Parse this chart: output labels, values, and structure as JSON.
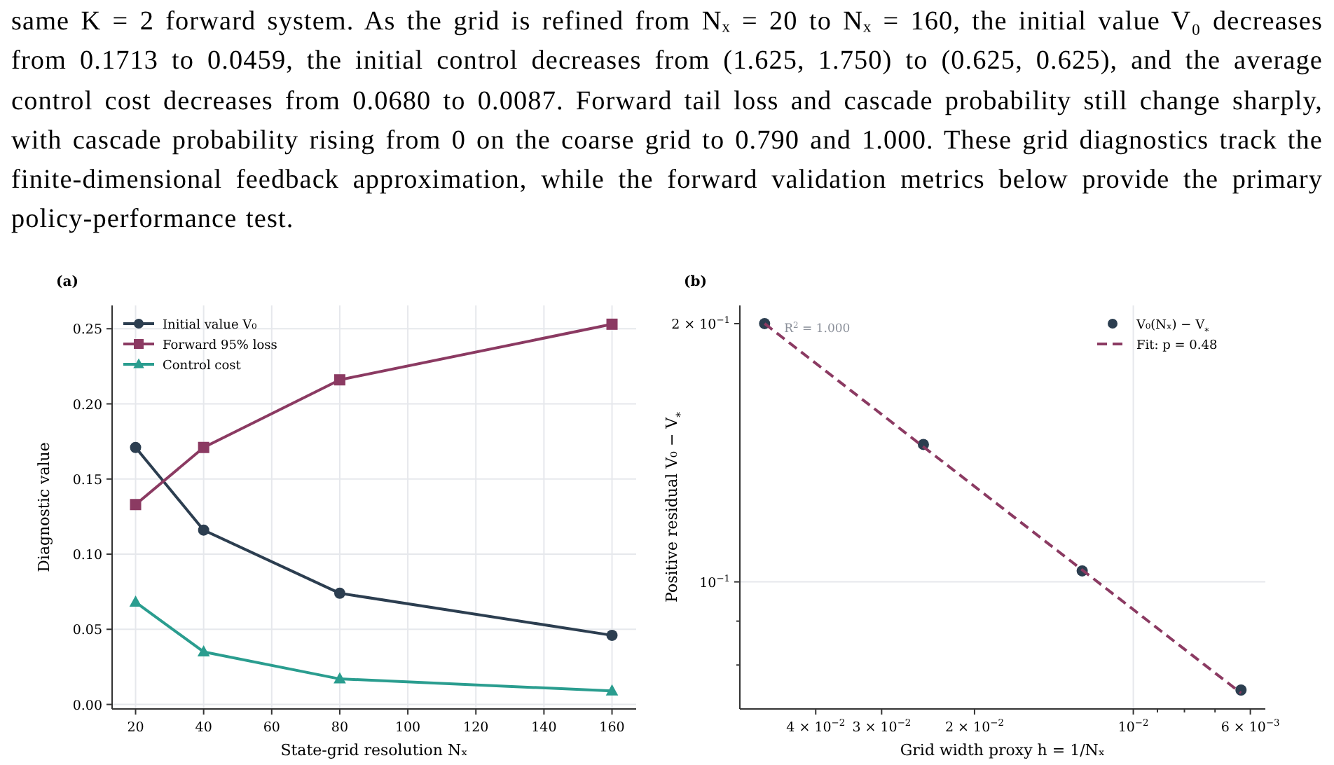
{
  "chart_data": [
    {
      "type": "line",
      "title": "(a)",
      "xlabel": "State-grid resolution Nₓ",
      "ylabel": "Diagnostic value",
      "annotations": [
        "same K = 2 forward system. As the grid is refined from Nₓ = 20 to Nₓ = 160, the initial value V₀ decreases from 0.1713 to 0.0459, the initial control decreases from (1.625, 1.750) to (0.625, 0.625), and the average control cost decreases from 0.0680 to 0.0087. Forward tail loss and cascade probability still change sharply, with cascade probability rising from 0 on the coarse grid to 0.790 and 1.000. These grid diagnostics track the finite-dimensional feedback approximation, while the forward validation metrics below provide the primary policy-performance test."
      ],
      "x": [
        20,
        40,
        80,
        160
      ],
      "series": [
        {
          "name": "Initial value V₀",
          "color": "#2c3e50",
          "marker": "circle",
          "values": [
            0.171,
            0.116,
            0.074,
            0.046
          ]
        },
        {
          "name": "Forward 95% loss",
          "color": "#8b3a62",
          "marker": "square",
          "values": [
            0.133,
            0.171,
            0.216,
            0.253
          ]
        },
        {
          "name": "Control cost",
          "color": "#2a9d8f",
          "marker": "triangle",
          "values": [
            0.068,
            0.035,
            0.017,
            0.009
          ]
        }
      ],
      "xlim": [
        13.1,
        167.1
      ],
      "xticks": [
        20,
        40,
        60,
        80,
        100,
        120,
        140,
        160
      ],
      "ylim": [
        -0.003,
        0.2655
      ],
      "yticks": [
        {
          "value": 0,
          "label": "0.00"
        },
        {
          "value": 0.05,
          "label": "0.05"
        },
        {
          "value": 0.1,
          "label": "0.10"
        },
        {
          "value": 0.15,
          "label": "0.15"
        },
        {
          "value": 0.2,
          "label": "0.20"
        },
        {
          "value": 0.25,
          "label": "0.25"
        }
      ],
      "grid": true,
      "legend": "top left"
    },
    {
      "type": "scatter",
      "title": "(b)",
      "xlabel": "Grid width proxy h = 1/Nₓ",
      "ylabel": "Positive residual V₀ − V$_{*}$",
      "log": "xy",
      "annotations": [
        {
          "text": "R$^{2}$ = 1.000",
          "x": 0.05,
          "y": 0.2
        }
      ],
      "series": [
        {
          "name": "V₀(Nₓ) − V$_{*}$",
          "marker": "circle",
          "color": "#2c3e50",
          "x": [
            0.05,
            0.025,
            0.0125,
            0.00625
          ],
          "values": [
            0.2,
            0.1446,
            0.103,
            0.0748
          ]
        },
        {
          "name": "Fit: p = 0.48",
          "type": "line",
          "marker": "none",
          "line_style": "dashed",
          "color": "#8b3a62",
          "x": [
            0.05,
            0.00625
          ],
          "values": [
            0.2,
            0.0742
          ]
        }
      ],
      "xlim": [
        0.0557,
        0.00562
      ],
      "xticks": [
        {
          "value": 0.04,
          "label": "4 × 10$^{−2}$"
        },
        {
          "value": 0.03,
          "label": "3 × 10$^{−2}$"
        },
        {
          "value": 0.02,
          "label": "2 × 10$^{−2}$"
        },
        {
          "value": 0.01,
          "label": "10$^{−2}$"
        },
        {
          "value": 0.009,
          "label": null
        },
        {
          "value": 0.008,
          "label": null
        },
        {
          "value": 0.007,
          "label": null
        },
        {
          "value": 0.006,
          "label": "6 × 10$^{−3}$"
        }
      ],
      "ylim": [
        0.0711,
        0.21
      ],
      "yticks": [
        {
          "value": 0.2,
          "label": "2 × 10$^{−1}$"
        },
        {
          "value": 0.1,
          "label": "10$^{−1}$"
        },
        {
          "value": 0.09,
          "label": null
        },
        {
          "value": 0.08,
          "label": null
        }
      ],
      "grid": true,
      "legend": "top right"
    }
  ]
}
